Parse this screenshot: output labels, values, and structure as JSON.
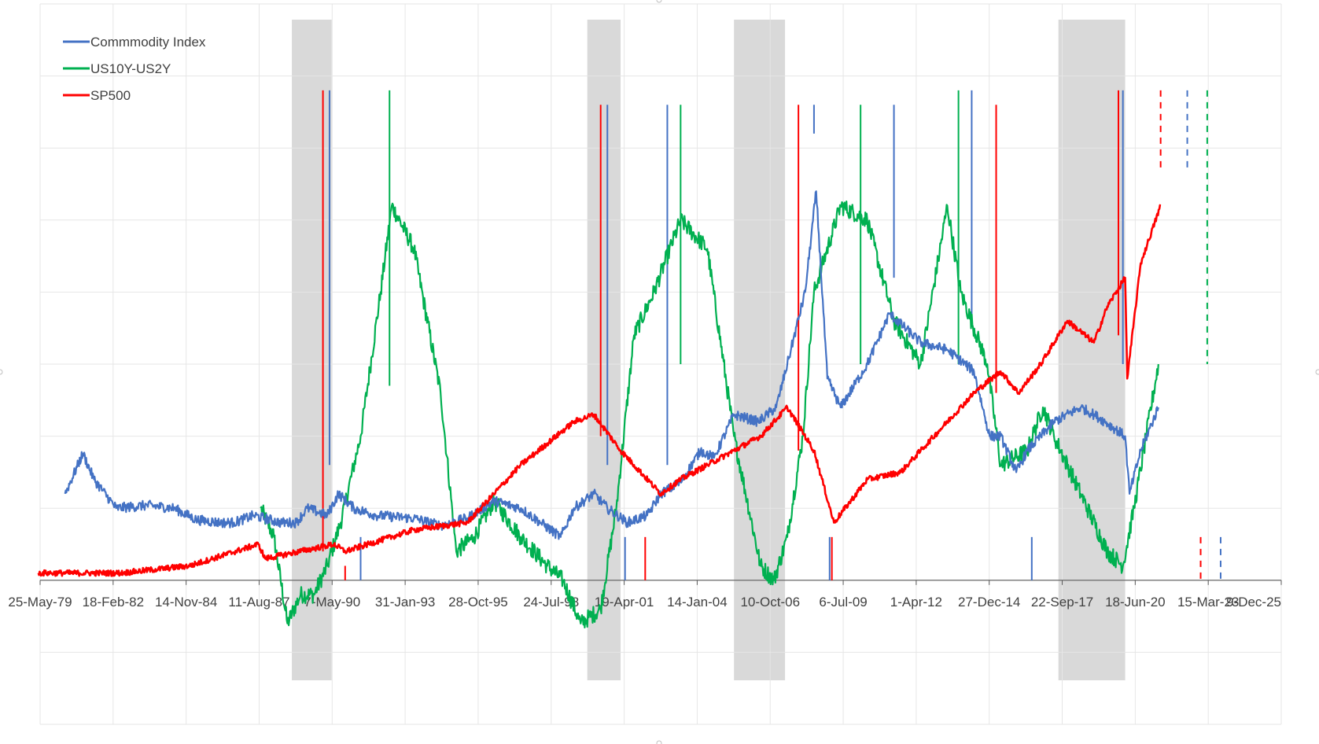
{
  "chart_data": {
    "type": "line",
    "title": "",
    "xlabel": "",
    "ylabel": "",
    "x_ticks": [
      "25-May-79",
      "18-Feb-82",
      "14-Nov-84",
      "11-Aug-87",
      "7-May-90",
      "31-Jan-93",
      "28-Oct-95",
      "24-Jul-98",
      "19-Apr-01",
      "14-Jan-04",
      "10-Oct-06",
      "6-Jul-09",
      "1-Apr-12",
      "27-Dec-14",
      "22-Sep-17",
      "18-Jun-20",
      "15-Mar-23",
      "9-Dec-25"
    ],
    "xlim": [
      "1979-05-25",
      "2025-12-09"
    ],
    "ylim": [
      -1,
      4
    ],
    "y_tick_labels_shown": false,
    "grid": true,
    "legend_position": "top-left",
    "recession_bands": [
      {
        "start": "1988-11-01",
        "end": "1990-05-01"
      },
      {
        "start": "1999-12-01",
        "end": "2001-03-01"
      },
      {
        "start": "2005-06-01",
        "end": "2007-05-01"
      },
      {
        "start": "2017-08-01",
        "end": "2020-02-01"
      }
    ],
    "series": [
      {
        "name": "Commmodity Index",
        "color": "#4472C4",
        "x": [
          "1980-05-01",
          "1981-01-01",
          "1981-06-01",
          "1982-04-01",
          "1983-06-01",
          "1984-06-01",
          "1985-04-01",
          "1986-03-01",
          "1986-09-01",
          "1987-06-01",
          "1988-06-01",
          "1989-01-01",
          "1989-06-01",
          "1990-03-01",
          "1990-08-01",
          "1991-03-01",
          "1992-01-01",
          "1993-06-01",
          "1994-06-01",
          "1995-06-01",
          "1996-06-01",
          "1997-06-01",
          "1998-03-01",
          "1998-12-01",
          "1999-06-01",
          "2000-03-01",
          "2000-09-01",
          "2001-06-01",
          "2002-03-01",
          "2002-09-01",
          "2003-06-01",
          "2004-03-01",
          "2004-09-01",
          "2005-06-01",
          "2006-05-01",
          "2007-01-01",
          "2007-06-01",
          "2008-02-01",
          "2008-07-01",
          "2008-12-01",
          "2009-06-01",
          "2010-06-01",
          "2011-04-01",
          "2012-06-01",
          "2013-06-01",
          "2014-06-01",
          "2015-01-01",
          "2015-06-01",
          "2016-01-01",
          "2016-06-01",
          "2017-06-01",
          "2018-06-01",
          "2018-12-01",
          "2019-05-01",
          "2020-02-01",
          "2020-04-01",
          "2020-09-01",
          "2021-05-01"
        ],
        "y": [
          0.6,
          0.88,
          0.7,
          0.5,
          0.52,
          0.5,
          0.42,
          0.4,
          0.4,
          0.45,
          0.4,
          0.4,
          0.5,
          0.45,
          0.6,
          0.5,
          0.45,
          0.43,
          0.38,
          0.43,
          0.55,
          0.5,
          0.4,
          0.3,
          0.5,
          0.6,
          0.5,
          0.4,
          0.45,
          0.6,
          0.68,
          0.9,
          0.85,
          1.15,
          1.1,
          1.2,
          1.5,
          2.0,
          2.7,
          1.4,
          1.2,
          1.5,
          1.85,
          1.65,
          1.6,
          1.45,
          1.0,
          1.0,
          0.75,
          0.9,
          1.1,
          1.2,
          1.15,
          1.1,
          1.0,
          0.6,
          0.9,
          1.2
        ]
      },
      {
        "name": "US10Y-US2Y",
        "color": "#00B050",
        "x": [
          "1987-09-01",
          "1988-03-01",
          "1988-09-01",
          "1989-03-01",
          "1989-09-01",
          "1990-03-01",
          "1990-09-01",
          "1991-06-01",
          "1992-03-01",
          "1992-08-01",
          "1993-06-01",
          "1994-06-01",
          "1995-01-01",
          "1995-09-01",
          "1996-06-01",
          "1997-06-01",
          "1998-06-01",
          "1999-01-01",
          "1999-09-01",
          "2000-06-01",
          "2001-01-01",
          "2001-09-01",
          "2002-06-01",
          "2003-06-01",
          "2004-06-01",
          "2005-06-01",
          "2006-06-01",
          "2006-12-01",
          "2007-06-01",
          "2008-01-01",
          "2008-06-01",
          "2009-06-01",
          "2010-06-01",
          "2011-06-01",
          "2012-06-01",
          "2013-06-01",
          "2013-12-01",
          "2014-12-01",
          "2015-06-01",
          "2016-06-01",
          "2017-01-01",
          "2017-06-01",
          "2018-06-01",
          "2019-06-01",
          "2020-01-01",
          "2020-06-01",
          "2021-05-01"
        ],
        "y": [
          0.5,
          0.3,
          -0.3,
          -0.1,
          -0.1,
          0.1,
          0.4,
          1.0,
          2.0,
          2.6,
          2.3,
          1.3,
          0.2,
          0.3,
          0.55,
          0.3,
          0.1,
          0.0,
          -0.3,
          -0.2,
          0.5,
          1.7,
          2.0,
          2.5,
          2.3,
          1.0,
          0.1,
          0.0,
          0.3,
          1.0,
          2.0,
          2.6,
          2.5,
          1.8,
          1.5,
          2.6,
          2.0,
          1.5,
          0.8,
          0.9,
          1.2,
          1.0,
          0.6,
          0.2,
          0.1,
          0.5,
          1.5
        ]
      },
      {
        "name": "SP500",
        "color": "#FF0000",
        "x": [
          "1979-05-01",
          "1982-06-01",
          "1985-01-01",
          "1987-08-01",
          "1987-11-01",
          "1990-06-01",
          "1990-11-01",
          "1993-06-01",
          "1995-06-01",
          "1996-06-01",
          "1997-06-01",
          "1998-06-01",
          "1999-06-01",
          "2000-03-01",
          "2001-03-01",
          "2001-09-01",
          "2002-09-01",
          "2003-06-01",
          "2004-06-01",
          "2005-06-01",
          "2006-06-01",
          "2007-06-01",
          "2008-06-01",
          "2009-03-01",
          "2010-06-01",
          "2011-09-01",
          "2012-06-01",
          "2013-06-01",
          "2014-06-01",
          "2015-06-01",
          "2016-02-01",
          "2016-12-01",
          "2017-12-01",
          "2018-12-01",
          "2019-06-01",
          "2020-02-01",
          "2020-03-01",
          "2020-09-01",
          "2021-06-01"
        ],
        "y": [
          0.05,
          0.05,
          0.1,
          0.25,
          0.15,
          0.25,
          0.2,
          0.35,
          0.4,
          0.6,
          0.8,
          0.95,
          1.1,
          1.15,
          0.9,
          0.8,
          0.6,
          0.7,
          0.8,
          0.9,
          1.0,
          1.2,
          0.9,
          0.4,
          0.7,
          0.75,
          0.9,
          1.1,
          1.3,
          1.45,
          1.3,
          1.5,
          1.8,
          1.65,
          1.9,
          2.1,
          1.4,
          2.2,
          2.6
        ]
      }
    ],
    "vertical_markers": [
      {
        "date": "1990-01-01",
        "color": "#FF0000",
        "y0": 3.4,
        "y1": 0.2
      },
      {
        "date": "1990-04-01",
        "color": "#4472C4",
        "y0": 3.4,
        "y1": 0.8
      },
      {
        "date": "1990-11-01",
        "color": "#FF0000",
        "y0": 0.1,
        "y1": 0.0
      },
      {
        "date": "1991-06-01",
        "color": "#4472C4",
        "y0": 0.3,
        "y1": 0.0
      },
      {
        "date": "1992-07-01",
        "color": "#00B050",
        "y0": 3.4,
        "y1": 1.35
      },
      {
        "date": "2000-06-01",
        "color": "#FF0000",
        "y0": 3.3,
        "y1": 1.0
      },
      {
        "date": "2000-09-01",
        "color": "#4472C4",
        "y0": 3.3,
        "y1": 0.8
      },
      {
        "date": "2001-05-01",
        "color": "#4472C4",
        "y0": 0.3,
        "y1": 0.0
      },
      {
        "date": "2002-02-01",
        "color": "#FF0000",
        "y0": 0.3,
        "y1": 0.0
      },
      {
        "date": "2002-12-01",
        "color": "#4472C4",
        "y0": 3.3,
        "y1": 0.8
      },
      {
        "date": "2003-06-01",
        "color": "#00B050",
        "y0": 3.3,
        "y1": 1.5
      },
      {
        "date": "2007-11-01",
        "color": "#FF0000",
        "y0": 3.3,
        "y1": 0.9
      },
      {
        "date": "2008-06-01",
        "color": "#4472C4",
        "y0": 3.3,
        "y1": 3.1
      },
      {
        "date": "2009-01-01",
        "color": "#4472C4",
        "y0": 0.3,
        "y1": 0.0
      },
      {
        "date": "2009-02-01",
        "color": "#FF0000",
        "y0": 0.3,
        "y1": 0.0
      },
      {
        "date": "2010-03-01",
        "color": "#00B050",
        "y0": 3.3,
        "y1": 1.5
      },
      {
        "date": "2011-06-01",
        "color": "#4472C4",
        "y0": 3.3,
        "y1": 2.1
      },
      {
        "date": "2013-11-01",
        "color": "#00B050",
        "y0": 3.4,
        "y1": 1.5
      },
      {
        "date": "2014-05-01",
        "color": "#4472C4",
        "y0": 3.4,
        "y1": 1.8
      },
      {
        "date": "2015-04-01",
        "color": "#FF0000",
        "y0": 3.3,
        "y1": 1.3
      },
      {
        "date": "2016-08-01",
        "color": "#4472C4",
        "y0": 0.3,
        "y1": 0.0
      },
      {
        "date": "2019-11-01",
        "color": "#FF0000",
        "y0": 3.4,
        "y1": 1.7
      },
      {
        "date": "2020-01-01",
        "color": "#4472C4",
        "y0": 3.4,
        "y1": 1.5
      },
      {
        "date": "2021-06-01",
        "color": "#FF0000",
        "y0": 3.4,
        "y1": 2.85,
        "dashed": true
      },
      {
        "date": "2022-06-01",
        "color": "#4472C4",
        "y0": 3.4,
        "y1": 2.85,
        "dashed": true
      },
      {
        "date": "2023-03-01",
        "color": "#00B050",
        "y0": 3.4,
        "y1": 1.5,
        "dashed": true
      },
      {
        "date": "2022-12-01",
        "color": "#FF0000",
        "y0": 0.3,
        "y1": 0.0,
        "dashed": true
      },
      {
        "date": "2023-09-01",
        "color": "#4472C4",
        "y0": 0.3,
        "y1": 0.0,
        "dashed": true
      }
    ]
  }
}
